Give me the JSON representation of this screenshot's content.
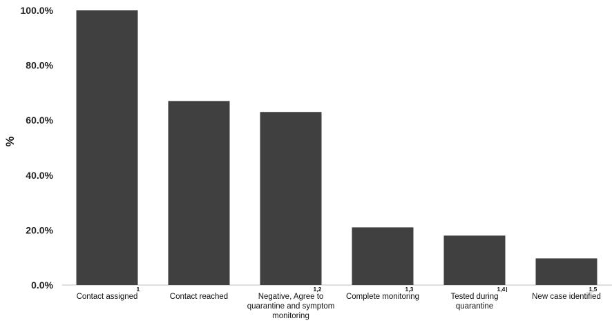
{
  "chart_data": {
    "type": "bar",
    "title": "",
    "xlabel": "",
    "ylabel": "%",
    "ylim": [
      0,
      100
    ],
    "yticks": [
      "0.0%",
      "20.0%",
      "40.0%",
      "60.0%",
      "80.0%",
      "100.0%"
    ],
    "grid": false,
    "bar_color": "#404040",
    "categories": [
      "Contact assigned",
      "Contact reached",
      "Negative, Agree to quarantine and symptom monitoring",
      "Complete monitoring",
      "Tested during quarantine",
      "New case identified"
    ],
    "category_lines": [
      [
        "Contact assigned"
      ],
      [
        "Contact reached"
      ],
      [
        "Negative, Agree to",
        "quarantine and symptom",
        "monitoring"
      ],
      [
        "Complete monitoring"
      ],
      [
        "Tested during",
        "quarantine"
      ],
      [
        "New case identified"
      ]
    ],
    "footnotes": [
      "1",
      "",
      "1,2",
      "1,3",
      "1,4",
      "1,5"
    ],
    "values": [
      100.0,
      67.0,
      63.0,
      21.0,
      18.0,
      9.7
    ]
  },
  "annotations": {
    "stray_mark": "I"
  }
}
